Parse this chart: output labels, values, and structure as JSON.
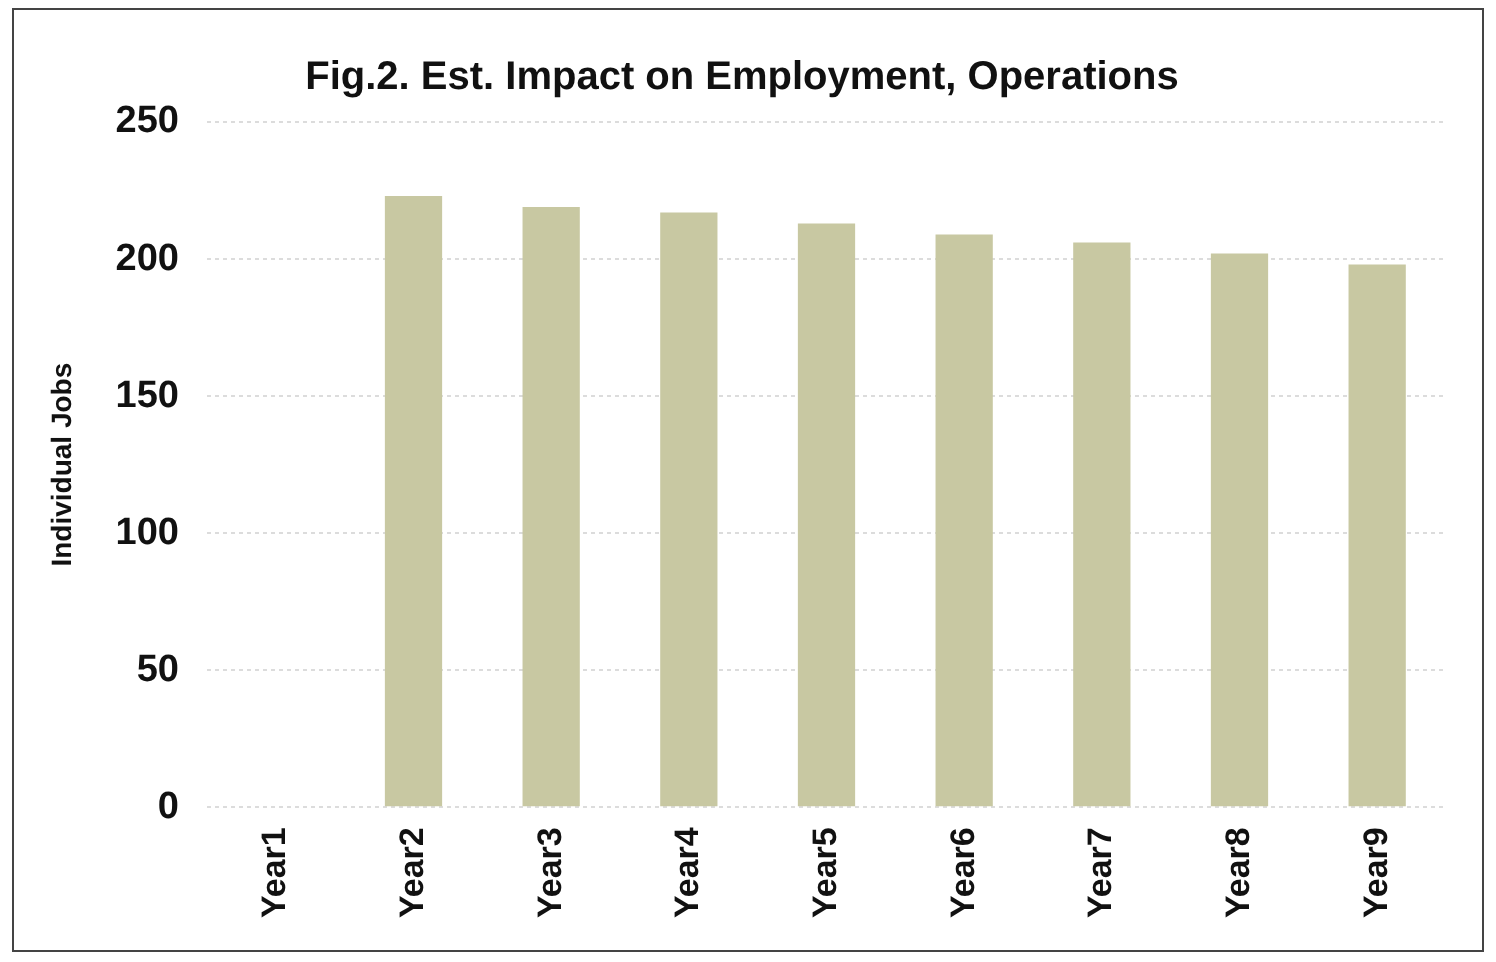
{
  "chart_data": {
    "type": "bar",
    "title": "Fig.2. Est. Impact on Employment, Operations",
    "ylabel": "Individual Jobs",
    "categories": [
      "Year1",
      "Year2",
      "Year3",
      "Year4",
      "Year5",
      "Year6",
      "Year7",
      "Year8",
      "Year9"
    ],
    "values": [
      0,
      223,
      219,
      217,
      213,
      209,
      206,
      202,
      198
    ],
    "color": "#c8c8a2",
    "ylim": [
      0,
      250
    ],
    "yticks": [
      0,
      50,
      100,
      150,
      200,
      250
    ],
    "grid": "y",
    "legend": false
  }
}
